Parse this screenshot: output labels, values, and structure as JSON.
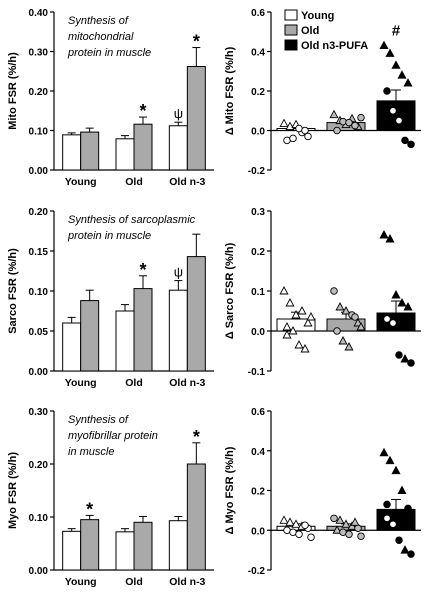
{
  "chart_data": [
    {
      "id": "mito_fsr",
      "type": "bar",
      "note_lines": [
        "Synthesis of",
        "mitochondrial",
        "protein in muscle"
      ],
      "ylabel": "Mito FSR (%/h)",
      "ylim": [
        0,
        0.4
      ],
      "yticks": [
        "0.00",
        "0.10",
        "0.20",
        "0.30",
        "0.40"
      ],
      "categories": [
        "Young",
        "Old",
        "Old n-3"
      ],
      "series": [
        {
          "name": "",
          "color": "#ffffff",
          "values": [
            0.089,
            0.079,
            0.112
          ],
          "errors": [
            0.005,
            0.008,
            0.009
          ]
        },
        {
          "name": "",
          "color": "#a9a9a9",
          "values": [
            0.096,
            0.116,
            0.262
          ],
          "errors": [
            0.01,
            0.018,
            0.048
          ]
        }
      ],
      "annotations": [
        {
          "category": 1,
          "series": 1,
          "text": "*"
        },
        {
          "category": 2,
          "series": 0,
          "text": "ψ"
        },
        {
          "category": 2,
          "series": 1,
          "text": "*"
        }
      ]
    },
    {
      "id": "delta_mito_fsr",
      "type": "scatter",
      "ylabel": "Δ Mito FSR (%/h)",
      "ylim": [
        -0.2,
        0.6
      ],
      "yticks": [
        "-0.2",
        "0.0",
        "0.2",
        "0.4",
        "0.6"
      ],
      "legend": [
        {
          "label": "Young",
          "color": "#ffffff"
        },
        {
          "label": "Old",
          "color": "#a9a9a9"
        },
        {
          "label": "Old n3-PUFA",
          "color": "#000000"
        }
      ],
      "groups": [
        {
          "mean": 0.01,
          "error": 0.012,
          "color": "#ffffff",
          "points": [
            [
              0.035,
              "tri"
            ],
            [
              0.02,
              "tri"
            ],
            [
              0.03,
              "tri"
            ],
            [
              -0.01,
              "circ"
            ],
            [
              -0.03,
              "circ"
            ],
            [
              -0.05,
              "circ"
            ],
            [
              -0.04,
              "circ"
            ],
            [
              0.01,
              "circ"
            ],
            [
              0.0,
              "circ"
            ]
          ]
        },
        {
          "mean": 0.04,
          "error": 0.012,
          "color": "#a9a9a9",
          "points": [
            [
              0.08,
              "tri"
            ],
            [
              0.05,
              "tri"
            ],
            [
              0.03,
              "tri"
            ],
            [
              0.06,
              "tri"
            ],
            [
              0.02,
              "tri"
            ],
            [
              0.0,
              "circ"
            ],
            [
              0.045,
              "circ"
            ],
            [
              0.04,
              "circ"
            ],
            [
              0.025,
              "circ"
            ],
            [
              0.065,
              "circ"
            ]
          ]
        },
        {
          "mean": 0.15,
          "error": 0.055,
          "color": "#000000",
          "points": [
            [
              0.43,
              "tri"
            ],
            [
              0.39,
              "tri"
            ],
            [
              0.33,
              "tri"
            ],
            [
              0.28,
              "tri"
            ],
            [
              0.24,
              "tri"
            ],
            [
              0.2,
              "circ"
            ],
            [
              0.1,
              "circ"
            ],
            [
              0.05,
              "circ"
            ],
            [
              -0.05,
              "circ"
            ],
            [
              -0.07,
              "circ"
            ]
          ]
        }
      ],
      "annotations": [
        {
          "group": 2,
          "text": "#"
        }
      ]
    },
    {
      "id": "sarco_fsr",
      "type": "bar",
      "note_lines": [
        "Synthesis of sarcoplasmic",
        "protein in muscle"
      ],
      "ylabel": "Sarco FSR (%/h)",
      "ylim": [
        0,
        0.2
      ],
      "yticks": [
        "0.00",
        "0.05",
        "0.10",
        "0.15",
        "0.20"
      ],
      "categories": [
        "Young",
        "Old",
        "Old n-3"
      ],
      "series": [
        {
          "name": "",
          "color": "#ffffff",
          "values": [
            0.06,
            0.075,
            0.101
          ],
          "errors": [
            0.007,
            0.008,
            0.012
          ]
        },
        {
          "name": "",
          "color": "#a9a9a9",
          "values": [
            0.088,
            0.103,
            0.143
          ],
          "errors": [
            0.013,
            0.016,
            0.028
          ]
        }
      ],
      "annotations": [
        {
          "category": 1,
          "series": 1,
          "text": "*"
        },
        {
          "category": 2,
          "series": 0,
          "text": "ψ"
        }
      ]
    },
    {
      "id": "delta_sarco_fsr",
      "type": "scatter",
      "ylabel": "Δ Sarco FSR (%/h)",
      "ylim": [
        -0.1,
        0.3
      ],
      "yticks": [
        "-0.1",
        "0.0",
        "0.1",
        "0.2",
        "0.3"
      ],
      "groups": [
        {
          "mean": 0.03,
          "error": 0.017,
          "color": "#ffffff",
          "points": [
            [
              0.1,
              "tri"
            ],
            [
              0.07,
              "tri"
            ],
            [
              0.04,
              "tri"
            ],
            [
              0.05,
              "tri"
            ],
            [
              0.02,
              "tri"
            ],
            [
              -0.01,
              "tri"
            ],
            [
              0.0,
              "tri"
            ],
            [
              -0.035,
              "tri"
            ],
            [
              -0.045,
              "tri"
            ],
            [
              0.035,
              "tri"
            ],
            [
              0.01,
              "tri"
            ]
          ]
        },
        {
          "mean": 0.03,
          "error": 0.017,
          "color": "#a9a9a9",
          "points": [
            [
              0.1,
              "circ"
            ],
            [
              0.06,
              "tri"
            ],
            [
              0.05,
              "tri"
            ],
            [
              0.04,
              "circ"
            ],
            [
              0.02,
              "tri"
            ],
            [
              0.0,
              "circ"
            ],
            [
              -0.025,
              "tri"
            ],
            [
              -0.04,
              "tri"
            ],
            [
              0.035,
              "circ"
            ],
            [
              0.01,
              "tri"
            ]
          ]
        },
        {
          "mean": 0.045,
          "error": 0.03,
          "color": "#000000",
          "points": [
            [
              0.24,
              "tri"
            ],
            [
              0.23,
              "tri"
            ],
            [
              0.09,
              "tri"
            ],
            [
              0.07,
              "tri"
            ],
            [
              0.06,
              "tri"
            ],
            [
              0.03,
              "circ"
            ],
            [
              0.02,
              "circ"
            ],
            [
              -0.06,
              "circ"
            ],
            [
              -0.07,
              "tri"
            ],
            [
              -0.08,
              "circ"
            ]
          ]
        }
      ]
    },
    {
      "id": "myo_fsr",
      "type": "bar",
      "note_lines": [
        "Synthesis of",
        "myofibrillar protein",
        "in muscle"
      ],
      "ylabel": "Myo FSR (%/h)",
      "ylim": [
        0,
        0.3
      ],
      "yticks": [
        "0.00",
        "0.10",
        "0.20",
        "0.30"
      ],
      "categories": [
        "Young",
        "Old",
        "Old n-3"
      ],
      "series": [
        {
          "name": "",
          "color": "#ffffff",
          "values": [
            0.073,
            0.072,
            0.093
          ],
          "errors": [
            0.005,
            0.006,
            0.008
          ]
        },
        {
          "name": "",
          "color": "#a9a9a9",
          "values": [
            0.095,
            0.09,
            0.2
          ],
          "errors": [
            0.008,
            0.011,
            0.04
          ]
        }
      ],
      "annotations": [
        {
          "category": 0,
          "series": 1,
          "text": "*"
        },
        {
          "category": 2,
          "series": 1,
          "text": "*"
        }
      ]
    },
    {
      "id": "delta_myo_fsr",
      "type": "scatter",
      "ylabel": "Δ Myo FSR (%/h)",
      "ylim": [
        -0.2,
        0.6
      ],
      "yticks": [
        "-0.2",
        "0.0",
        "0.2",
        "0.4",
        "0.6"
      ],
      "groups": [
        {
          "mean": 0.02,
          "error": 0.012,
          "color": "#ffffff",
          "points": [
            [
              0.05,
              "tri"
            ],
            [
              0.04,
              "tri"
            ],
            [
              0.03,
              "tri"
            ],
            [
              0.02,
              "tri"
            ],
            [
              0.01,
              "circ"
            ],
            [
              0.0,
              "circ"
            ],
            [
              -0.01,
              "circ"
            ],
            [
              -0.02,
              "circ"
            ],
            [
              0.025,
              "circ"
            ],
            [
              -0.035,
              "circ"
            ]
          ]
        },
        {
          "mean": 0.02,
          "error": 0.012,
          "color": "#a9a9a9",
          "points": [
            [
              0.06,
              "circ"
            ],
            [
              0.05,
              "tri"
            ],
            [
              0.03,
              "tri"
            ],
            [
              0.02,
              "tri"
            ],
            [
              0.01,
              "circ"
            ],
            [
              0.0,
              "tri"
            ],
            [
              -0.01,
              "circ"
            ],
            [
              -0.02,
              "circ"
            ],
            [
              0.04,
              "tri"
            ],
            [
              -0.03,
              "circ"
            ]
          ]
        },
        {
          "mean": 0.105,
          "error": 0.05,
          "color": "#000000",
          "points": [
            [
              0.39,
              "tri"
            ],
            [
              0.35,
              "tri"
            ],
            [
              0.3,
              "tri"
            ],
            [
              0.2,
              "tri"
            ],
            [
              0.11,
              "circ"
            ],
            [
              0.06,
              "circ"
            ],
            [
              0.03,
              "circ"
            ],
            [
              -0.05,
              "circ"
            ],
            [
              -0.1,
              "tri"
            ],
            [
              -0.12,
              "circ"
            ],
            [
              0.13,
              "circ"
            ]
          ]
        }
      ]
    }
  ]
}
